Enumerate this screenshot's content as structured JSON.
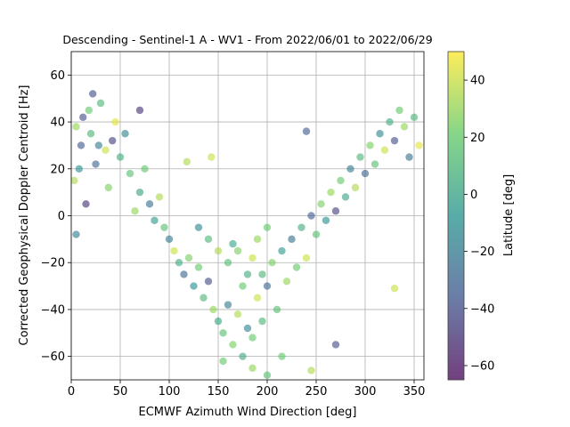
{
  "chart_data": {
    "type": "scatter",
    "title": "Descending - Sentinel-1 A - WV1 - From 2022/06/01 to 2022/06/29",
    "xlabel": "ECMWF Azimuth Wind Direction [deg]",
    "ylabel": "Corrected Geophysical Doppler Centroid [Hz]",
    "xlim": [
      0,
      360
    ],
    "ylim": [
      -70,
      70
    ],
    "xticks": [
      0,
      50,
      100,
      150,
      200,
      250,
      300,
      350
    ],
    "yticks": [
      -60,
      -40,
      -20,
      0,
      20,
      40,
      60
    ],
    "grid": true,
    "colorbar": {
      "label": "Latitude [deg]",
      "range": [
        -65,
        50
      ],
      "ticks": [
        -60,
        -40,
        -20,
        0,
        20,
        40
      ],
      "colormap": "viridis",
      "alpha": 0.6
    },
    "series": [
      {
        "points": [
          [
            5,
            38,
            30
          ],
          [
            12,
            42,
            -40
          ],
          [
            20,
            35,
            10
          ],
          [
            28,
            30,
            -20
          ],
          [
            35,
            28,
            40
          ],
          [
            8,
            20,
            -10
          ],
          [
            18,
            45,
            20
          ],
          [
            42,
            32,
            -45
          ],
          [
            50,
            25,
            5
          ],
          [
            3,
            15,
            35
          ],
          [
            25,
            22,
            -30
          ],
          [
            60,
            18,
            15
          ],
          [
            15,
            5,
            -50
          ],
          [
            38,
            12,
            25
          ],
          [
            55,
            35,
            -15
          ],
          [
            70,
            10,
            0
          ],
          [
            65,
            2,
            30
          ],
          [
            80,
            5,
            -25
          ],
          [
            45,
            40,
            45
          ],
          [
            10,
            30,
            -35
          ],
          [
            30,
            48,
            10
          ],
          [
            22,
            52,
            -40
          ],
          [
            75,
            20,
            20
          ],
          [
            85,
            -2,
            -5
          ],
          [
            90,
            8,
            35
          ],
          [
            95,
            -5,
            15
          ],
          [
            100,
            -10,
            -20
          ],
          [
            105,
            -15,
            40
          ],
          [
            110,
            -20,
            5
          ],
          [
            115,
            -25,
            -30
          ],
          [
            120,
            -18,
            25
          ],
          [
            125,
            -30,
            -10
          ],
          [
            130,
            -22,
            20
          ],
          [
            135,
            -35,
            10
          ],
          [
            140,
            -28,
            -40
          ],
          [
            145,
            -40,
            30
          ],
          [
            150,
            -45,
            0
          ],
          [
            155,
            -50,
            15
          ],
          [
            160,
            -38,
            -20
          ],
          [
            165,
            -55,
            25
          ],
          [
            170,
            -42,
            35
          ],
          [
            175,
            -60,
            5
          ],
          [
            180,
            -48,
            -15
          ],
          [
            185,
            -52,
            20
          ],
          [
            190,
            -35,
            40
          ],
          [
            195,
            -25,
            10
          ],
          [
            200,
            -30,
            -30
          ],
          [
            205,
            -20,
            25
          ],
          [
            210,
            -40,
            15
          ],
          [
            215,
            -15,
            -5
          ],
          [
            220,
            -28,
            30
          ],
          [
            225,
            -10,
            -25
          ],
          [
            230,
            -22,
            20
          ],
          [
            235,
            -5,
            5
          ],
          [
            240,
            -18,
            40
          ],
          [
            245,
            0,
            -35
          ],
          [
            250,
            -8,
            15
          ],
          [
            255,
            5,
            25
          ],
          [
            260,
            -2,
            -10
          ],
          [
            265,
            10,
            30
          ],
          [
            270,
            2,
            -45
          ],
          [
            275,
            15,
            20
          ],
          [
            280,
            8,
            0
          ],
          [
            285,
            20,
            -20
          ],
          [
            290,
            12,
            35
          ],
          [
            295,
            25,
            10
          ],
          [
            300,
            18,
            -30
          ],
          [
            305,
            30,
            25
          ],
          [
            310,
            22,
            15
          ],
          [
            315,
            35,
            -15
          ],
          [
            320,
            28,
            40
          ],
          [
            325,
            40,
            5
          ],
          [
            330,
            32,
            -40
          ],
          [
            335,
            45,
            20
          ],
          [
            340,
            38,
            30
          ],
          [
            345,
            25,
            -25
          ],
          [
            350,
            42,
            10
          ],
          [
            355,
            30,
            45
          ],
          [
            160,
            -20,
            15
          ],
          [
            170,
            -15,
            25
          ],
          [
            180,
            -25,
            5
          ],
          [
            190,
            -10,
            30
          ],
          [
            200,
            -5,
            20
          ],
          [
            150,
            -15,
            35
          ],
          [
            140,
            -10,
            10
          ],
          [
            130,
            -5,
            -15
          ],
          [
            175,
            -30,
            20
          ],
          [
            185,
            -18,
            40
          ],
          [
            195,
            -45,
            10
          ],
          [
            165,
            -12,
            0
          ],
          [
            155,
            -62,
            20
          ],
          [
            185,
            -65,
            30
          ],
          [
            200,
            -68,
            15
          ],
          [
            143,
            25,
            40
          ],
          [
            240,
            36,
            -35
          ],
          [
            270,
            -55,
            -40
          ],
          [
            118,
            23,
            35
          ],
          [
            70,
            45,
            -50
          ],
          [
            330,
            -31,
            40
          ],
          [
            215,
            -60,
            20
          ],
          [
            245,
            -66,
            35
          ],
          [
            5,
            -8,
            -20
          ]
        ]
      }
    ]
  }
}
